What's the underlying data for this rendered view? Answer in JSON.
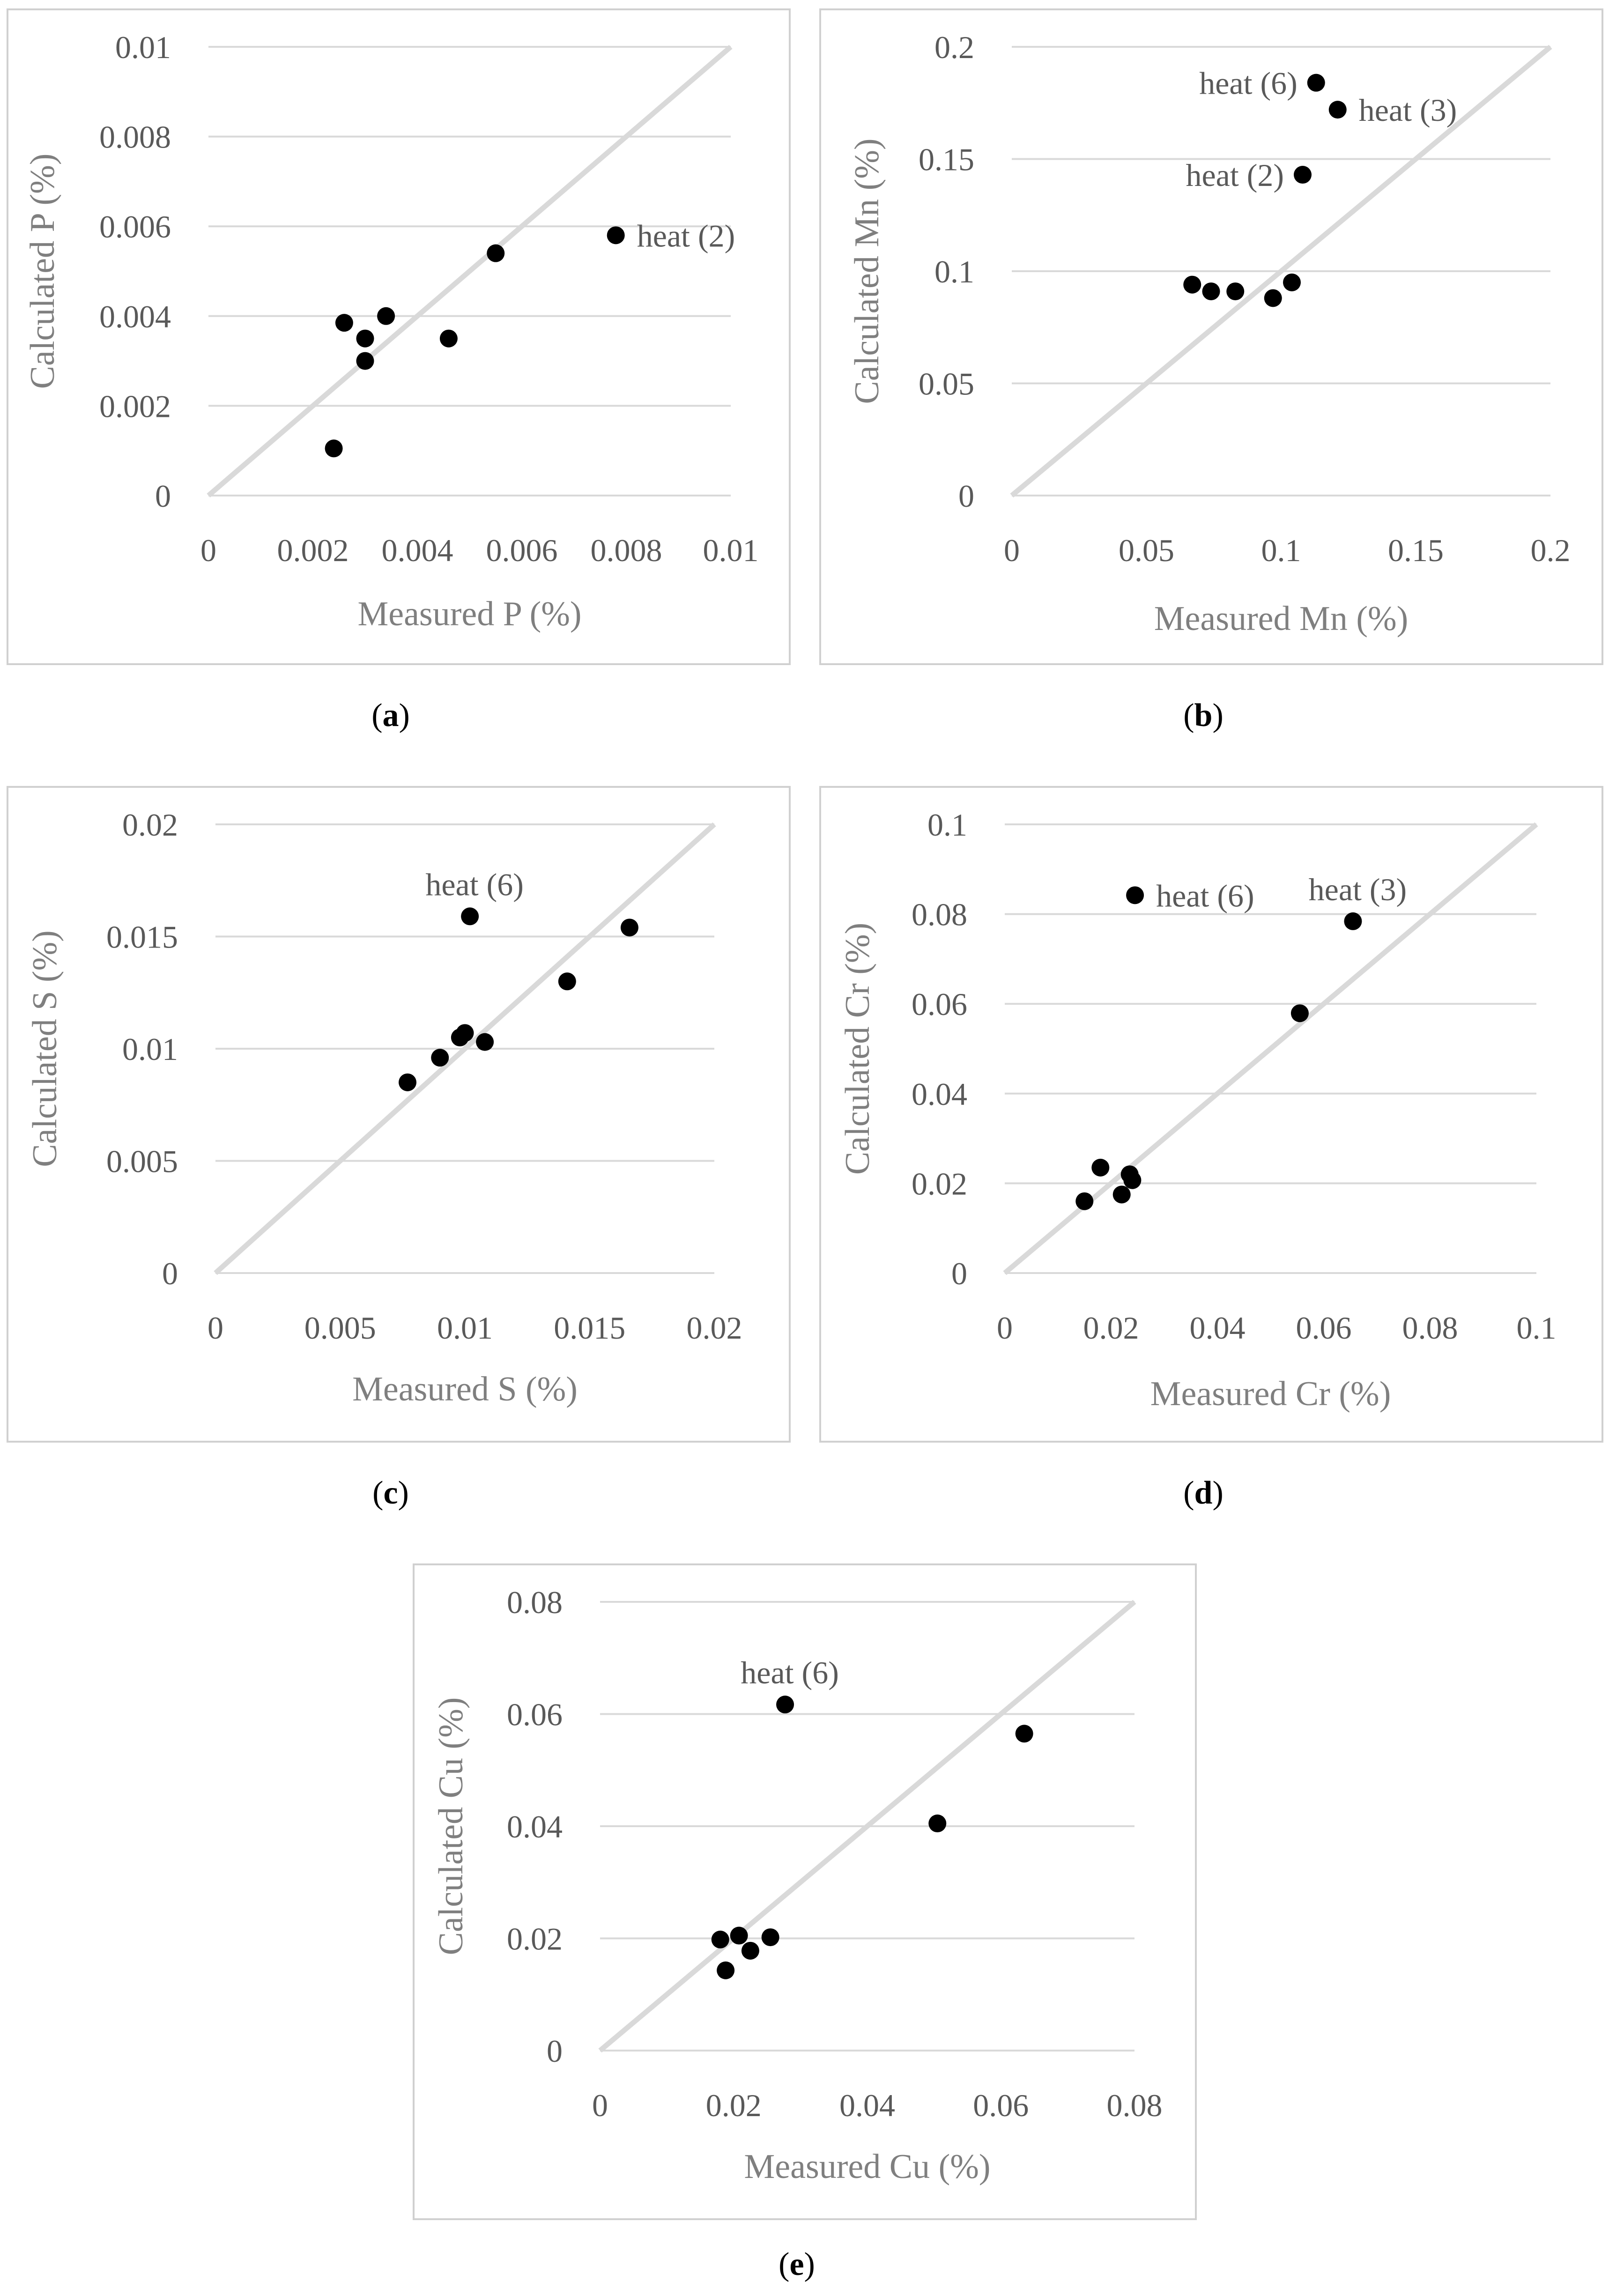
{
  "chart_data": [
    {
      "type": "scatter",
      "id": "a",
      "caption_open": "(",
      "caption_letter": "a",
      "caption_close": ")",
      "xlabel": "Measured P (%)",
      "ylabel": "Calculated P (%)",
      "xlim": [
        0,
        0.01
      ],
      "ylim": [
        0,
        0.01
      ],
      "ticks": [
        0,
        0.002,
        0.004,
        0.006,
        0.008,
        0.01
      ],
      "tick_labels": [
        "0",
        "0.002",
        "0.004",
        "0.006",
        "0.008",
        "0.01"
      ],
      "grid": "horizontal",
      "reference_line": "y = x",
      "points": [
        {
          "x": 0.0024,
          "y": 0.00105
        },
        {
          "x": 0.0026,
          "y": 0.00385
        },
        {
          "x": 0.003,
          "y": 0.0035
        },
        {
          "x": 0.003,
          "y": 0.003
        },
        {
          "x": 0.0034,
          "y": 0.004
        },
        {
          "x": 0.0046,
          "y": 0.0035
        },
        {
          "x": 0.0055,
          "y": 0.0054
        },
        {
          "x": 0.0078,
          "y": 0.0058,
          "label": "heat (2)",
          "label_side": "right"
        }
      ]
    },
    {
      "type": "scatter",
      "id": "b",
      "caption_open": "(",
      "caption_letter": "b",
      "caption_close": ")",
      "xlabel": "Measured Mn (%)",
      "ylabel": "Calculated Mn (%)",
      "xlim": [
        0,
        0.2
      ],
      "ylim": [
        0,
        0.2
      ],
      "ticks": [
        0,
        0.05,
        0.1,
        0.15,
        0.2
      ],
      "tick_labels": [
        "0",
        "0.05",
        "0.1",
        "0.15",
        "0.2"
      ],
      "grid": "horizontal",
      "reference_line": "y = x",
      "points": [
        {
          "x": 0.067,
          "y": 0.094
        },
        {
          "x": 0.074,
          "y": 0.091
        },
        {
          "x": 0.083,
          "y": 0.091
        },
        {
          "x": 0.097,
          "y": 0.088
        },
        {
          "x": 0.104,
          "y": 0.095
        },
        {
          "x": 0.108,
          "y": 0.143,
          "label": "heat (2)",
          "label_side": "left"
        },
        {
          "x": 0.113,
          "y": 0.184,
          "label": "heat (6)",
          "label_side": "left"
        },
        {
          "x": 0.121,
          "y": 0.172,
          "label": "heat (3)",
          "label_side": "right"
        }
      ]
    },
    {
      "type": "scatter",
      "id": "c",
      "caption_open": "(",
      "caption_letter": "c",
      "caption_close": ")",
      "xlabel": "Measured S (%)",
      "ylabel": "Calculated S (%)",
      "xlim": [
        0,
        0.02
      ],
      "ylim": [
        0,
        0.02
      ],
      "ticks": [
        0,
        0.005,
        0.01,
        0.015,
        0.02
      ],
      "tick_labels": [
        "0",
        "0.005",
        "0.01",
        "0.015",
        "0.02"
      ],
      "grid": "horizontal",
      "reference_line": "y = x",
      "points": [
        {
          "x": 0.0077,
          "y": 0.0085
        },
        {
          "x": 0.009,
          "y": 0.0096
        },
        {
          "x": 0.0098,
          "y": 0.0105
        },
        {
          "x": 0.01,
          "y": 0.0107
        },
        {
          "x": 0.0108,
          "y": 0.0103
        },
        {
          "x": 0.0102,
          "y": 0.0159,
          "label": "heat (6)",
          "label_side": "above"
        },
        {
          "x": 0.0141,
          "y": 0.013
        },
        {
          "x": 0.0166,
          "y": 0.0154
        }
      ]
    },
    {
      "type": "scatter",
      "id": "d",
      "caption_open": "(",
      "caption_letter": "d",
      "caption_close": ")",
      "xlabel": "Measured Cr (%)",
      "ylabel": "Calculated Cr (%)",
      "xlim": [
        0,
        0.1
      ],
      "ylim": [
        0,
        0.1
      ],
      "ticks": [
        0,
        0.02,
        0.04,
        0.06,
        0.08,
        0.1
      ],
      "tick_labels": [
        "0",
        "0.02",
        "0.04",
        "0.06",
        "0.08",
        "0.1"
      ],
      "grid": "horizontal",
      "reference_line": "y = x",
      "points": [
        {
          "x": 0.015,
          "y": 0.016
        },
        {
          "x": 0.018,
          "y": 0.0235
        },
        {
          "x": 0.022,
          "y": 0.0175
        },
        {
          "x": 0.0235,
          "y": 0.022
        },
        {
          "x": 0.024,
          "y": 0.0207
        },
        {
          "x": 0.0245,
          "y": 0.0842,
          "label": "heat (6)",
          "label_side": "right"
        },
        {
          "x": 0.0555,
          "y": 0.0579
        },
        {
          "x": 0.0655,
          "y": 0.0784,
          "label": "heat (3)",
          "label_side": "above"
        }
      ]
    },
    {
      "type": "scatter",
      "id": "e",
      "caption_open": "(",
      "caption_letter": "e",
      "caption_close": ")",
      "xlabel": "Measured Cu (%)",
      "ylabel": "Calculated Cu (%)",
      "xlim": [
        0,
        0.08
      ],
      "ylim": [
        0,
        0.08
      ],
      "ticks": [
        0,
        0.02,
        0.04,
        0.06,
        0.08
      ],
      "tick_labels": [
        "0",
        "0.02",
        "0.04",
        "0.06",
        "0.08"
      ],
      "grid": "horizontal",
      "reference_line": "y = x",
      "points": [
        {
          "x": 0.018,
          "y": 0.0198
        },
        {
          "x": 0.0188,
          "y": 0.0143
        },
        {
          "x": 0.0208,
          "y": 0.0205
        },
        {
          "x": 0.0225,
          "y": 0.0178
        },
        {
          "x": 0.0255,
          "y": 0.0202
        },
        {
          "x": 0.0277,
          "y": 0.0617,
          "label": "heat (6)",
          "label_side": "above"
        },
        {
          "x": 0.0505,
          "y": 0.0405
        },
        {
          "x": 0.0635,
          "y": 0.0565
        }
      ]
    }
  ]
}
